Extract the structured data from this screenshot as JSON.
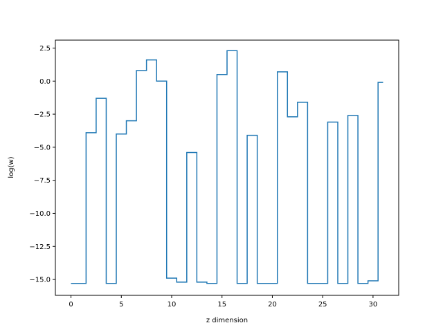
{
  "chart_data": {
    "type": "line",
    "drawstyle": "steps-mid",
    "xlabel": "z dimension",
    "ylabel": "log(w)",
    "xlim": [
      -1.55,
      32.55
    ],
    "ylim": [
      -16.2,
      3.1
    ],
    "xticks": [
      0,
      5,
      10,
      15,
      20,
      25,
      30
    ],
    "yticks": [
      2.5,
      0.0,
      -2.5,
      -5.0,
      -7.5,
      -10.0,
      -12.5,
      -15.0
    ],
    "xtick_labels": [
      "0",
      "5",
      "10",
      "15",
      "20",
      "25",
      "30"
    ],
    "ytick_labels": [
      "2.5",
      "0.0",
      "−2.5",
      "−5.0",
      "−7.5",
      "−10.0",
      "−12.5",
      "−15.0"
    ],
    "grid": false,
    "series": [
      {
        "color": "#1f77b4",
        "x": [
          0,
          1,
          2,
          3,
          4,
          5,
          6,
          7,
          8,
          9,
          10,
          11,
          12,
          13,
          14,
          15,
          16,
          17,
          18,
          19,
          20,
          21,
          22,
          23,
          24,
          25,
          26,
          27,
          28,
          29,
          30,
          31
        ],
        "y": [
          -15.3,
          -15.3,
          -3.9,
          -1.3,
          -15.3,
          -4.0,
          -3.0,
          0.8,
          1.6,
          0.0,
          -14.9,
          -15.2,
          -5.4,
          -15.2,
          -15.3,
          0.5,
          2.3,
          -15.3,
          -4.1,
          -15.3,
          -15.3,
          0.7,
          -2.7,
          -1.6,
          -15.3,
          -15.3,
          -3.1,
          -15.3,
          -2.6,
          -15.3,
          -15.1,
          -0.1
        ]
      }
    ]
  }
}
